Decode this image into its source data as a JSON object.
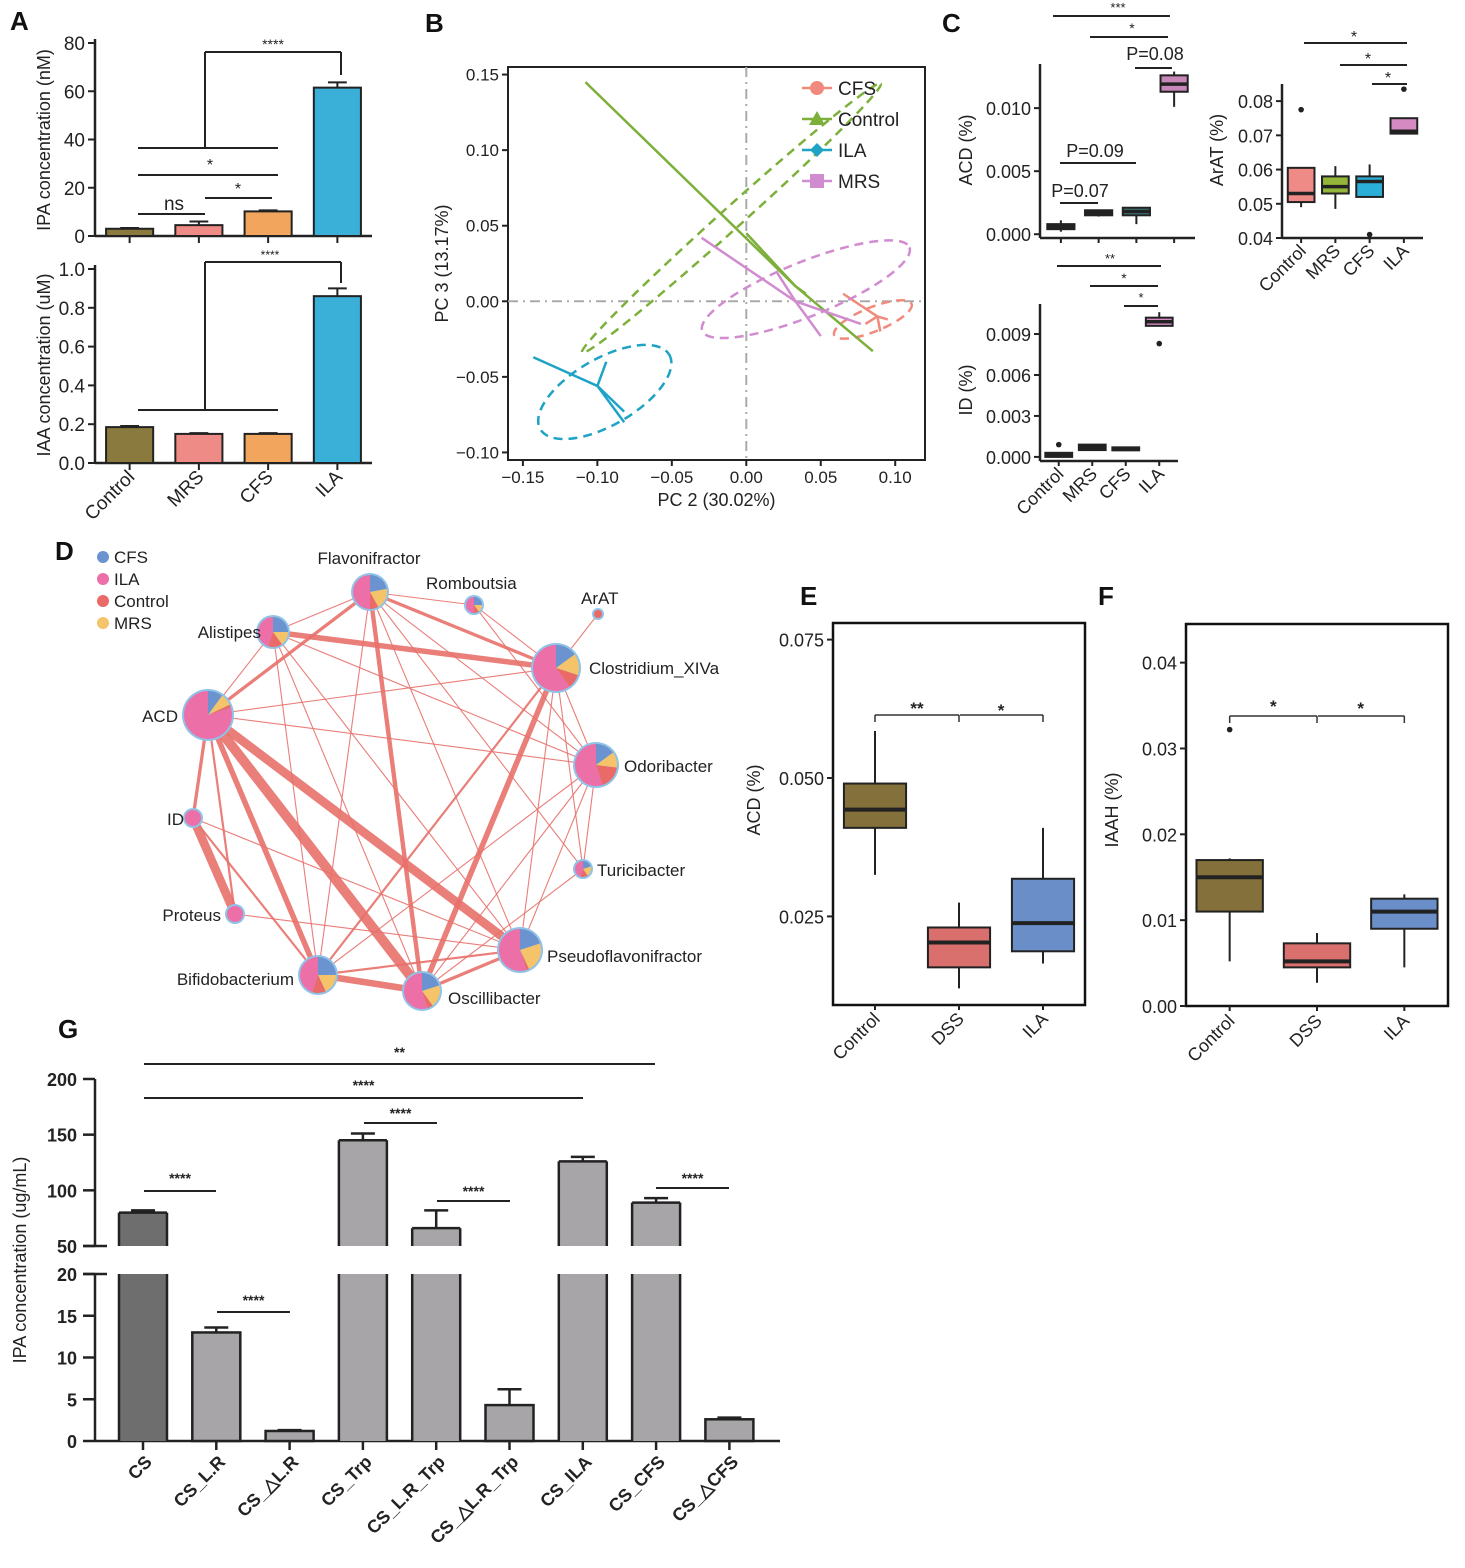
{
  "panels": {
    "A": "A",
    "B": "B",
    "C": "C",
    "D": "D",
    "E": "E",
    "F": "F",
    "G": "G"
  },
  "colors": {
    "control_olive": "#8b7a3e",
    "mrs_pink": "#ef8b86",
    "cfs_orange": "#f2a55c",
    "ila_blue": "#3aafd8",
    "pca_cfs": "#f08a7c",
    "pca_control": "#7db03a",
    "pca_ila": "#1ea3c4",
    "pca_mrs": "#d08ccf",
    "net_cfs": "#6a93cf",
    "net_ila": "#ec6fa8",
    "net_control": "#e96a66",
    "net_mrs": "#f5c36a",
    "edge": "#e8706a",
    "e_control": "#83703a",
    "e_dss": "#d9706e",
    "e_ila": "#6a8fc8",
    "g_cs": "#6e6e6e",
    "g_other": "#a8a5a8"
  },
  "chart_data": [
    {
      "id": "A-top",
      "type": "bar",
      "title": "",
      "xlabel": "",
      "ylabel": "IPA concentration (nM)",
      "categories": [
        "Control",
        "MRS",
        "CFS",
        "ILA"
      ],
      "values": [
        3,
        4.5,
        10.2,
        61.5
      ],
      "errors": [
        0.3,
        1.5,
        0.4,
        2.2
      ],
      "ylim": [
        0,
        80
      ],
      "yticks": [
        0,
        20,
        40,
        60,
        80
      ],
      "annotations": [
        {
          "text": "****",
          "pair": "Control-CFS vs ILA"
        },
        {
          "text": "*",
          "pair": "Control vs CFS"
        },
        {
          "text": "*",
          "pair": "MRS vs CFS"
        },
        {
          "text": "ns",
          "pair": "Control vs MRS"
        }
      ]
    },
    {
      "id": "A-bottom",
      "type": "bar",
      "ylabel": "IAA concentration (uM)",
      "categories": [
        "Control",
        "MRS",
        "CFS",
        "ILA"
      ],
      "values": [
        0.185,
        0.15,
        0.15,
        0.86
      ],
      "errors": [
        0.006,
        0.004,
        0.004,
        0.04
      ],
      "ylim": [
        0,
        1.0
      ],
      "yticks": [
        "0.0",
        "0.2",
        "0.4",
        "0.6",
        "0.8",
        "1.0"
      ],
      "annotations": [
        {
          "text": "****",
          "pair": "Control-CFS vs ILA"
        }
      ]
    },
    {
      "id": "B",
      "type": "scatter",
      "title": "",
      "xlabel": "PC 2 (30.02%)",
      "ylabel": "PC 3 (13.17%)",
      "xlim": [
        -0.16,
        0.12
      ],
      "ylim": [
        -0.105,
        0.155
      ],
      "xticks": [
        "-0.15",
        "-0.10",
        "-0.05",
        "0.00",
        "0.05",
        "0.10"
      ],
      "yticks": [
        "-0.10",
        "-0.05",
        "0.00",
        "0.05",
        "0.10",
        "0.15"
      ],
      "legend": {
        "placement": "top-right",
        "entries": [
          "CFS",
          "Control",
          "ILA",
          "MRS"
        ]
      },
      "series": [
        {
          "name": "CFS",
          "centroid": [
            0.088,
            -0.01
          ],
          "points": [
            [
              0.065,
              0.005
            ],
            [
              0.08,
              -0.015
            ],
            [
              0.095,
              -0.012
            ],
            [
              0.09,
              -0.02
            ]
          ]
        },
        {
          "name": "Control",
          "centroid": [
            0.033,
            0.01
          ],
          "points": [
            [
              -0.108,
              0.145
            ],
            [
              0.0,
              0.045
            ],
            [
              0.085,
              -0.033
            ],
            [
              0.04,
              0.005
            ]
          ]
        },
        {
          "name": "ILA",
          "centroid": [
            -0.1,
            -0.056
          ],
          "points": [
            [
              -0.143,
              -0.037
            ],
            [
              -0.094,
              -0.04
            ],
            [
              -0.082,
              -0.073
            ],
            [
              -0.082,
              -0.08
            ]
          ]
        },
        {
          "name": "MRS",
          "centroid": [
            0.033,
            0.0
          ],
          "points": [
            [
              -0.03,
              0.042
            ],
            [
              0.077,
              -0.015
            ],
            [
              0.05,
              -0.023
            ],
            [
              0.02,
              0.02
            ]
          ]
        }
      ]
    },
    {
      "id": "C-ACD",
      "type": "box",
      "ylabel": "ACD (%)",
      "categories": [
        "Control",
        "MRS",
        "CFS",
        "ILA"
      ],
      "ylim": [
        -0.0003,
        0.0135
      ],
      "yticks": [
        "0.000",
        "0.005",
        "0.010"
      ],
      "boxes": [
        {
          "min": 0.0002,
          "q1": 0.0004,
          "median": 0.0006,
          "q3": 0.0008,
          "max": 0.0011
        },
        {
          "min": 0.0014,
          "q1": 0.0015,
          "median": 0.0017,
          "q3": 0.0019,
          "max": 0.0019
        },
        {
          "min": 0.0008,
          "q1": 0.0015,
          "median": 0.0018,
          "q3": 0.0021,
          "max": 0.0021
        },
        {
          "min": 0.0101,
          "q1": 0.0113,
          "median": 0.0119,
          "q3": 0.0126,
          "max": 0.0129
        }
      ],
      "annotations": [
        "***",
        "*",
        "P=0.08",
        "P=0.09",
        "P=0.07"
      ]
    },
    {
      "id": "C-ArAT",
      "type": "box",
      "ylabel": "ArAT (%)",
      "categories": [
        "Control",
        "MRS",
        "CFS",
        "ILA"
      ],
      "ylim": [
        0.04,
        0.085
      ],
      "yticks": [
        "0.04",
        "0.05",
        "0.06",
        "0.07",
        "0.08"
      ],
      "boxes": [
        {
          "min": 0.049,
          "q1": 0.0505,
          "median": 0.053,
          "q3": 0.0605,
          "max": 0.0605,
          "outliers": [
            0.0775
          ]
        },
        {
          "min": 0.0485,
          "q1": 0.053,
          "median": 0.055,
          "q3": 0.058,
          "max": 0.061
        },
        {
          "min": 0.052,
          "q1": 0.052,
          "median": 0.0565,
          "q3": 0.058,
          "max": 0.0615,
          "outliers": [
            0.041
          ]
        },
        {
          "min": 0.0705,
          "q1": 0.0705,
          "median": 0.0712,
          "q3": 0.075,
          "max": 0.075,
          "outliers": [
            0.0835
          ]
        }
      ],
      "annotations": [
        "*",
        "*",
        "*"
      ]
    },
    {
      "id": "C-ID",
      "type": "box",
      "ylabel": "ID (%)",
      "categories": [
        "Control",
        "MRS",
        "CFS",
        "ILA"
      ],
      "ylim": [
        -0.0003,
        0.0112
      ],
      "yticks": [
        "0.000",
        "0.003",
        "0.006",
        "0.009"
      ],
      "boxes": [
        {
          "min": 0.0,
          "q1": 0.0,
          "median": 0.0001,
          "q3": 0.0003,
          "max": 0.0003,
          "outliers": [
            0.0009
          ]
        },
        {
          "min": 0.0005,
          "q1": 0.0005,
          "median": 0.0007,
          "q3": 0.0009,
          "max": 0.0009
        },
        {
          "min": 0.0005,
          "q1": 0.0005,
          "median": 0.0006,
          "q3": 0.0007,
          "max": 0.0007
        },
        {
          "min": 0.0096,
          "q1": 0.0096,
          "median": 0.0099,
          "q3": 0.0102,
          "max": 0.0106,
          "outliers": [
            0.0083
          ]
        }
      ],
      "annotations": [
        "**",
        "*",
        "*"
      ]
    },
    {
      "id": "D",
      "type": "network",
      "legend": {
        "placement": "top-left",
        "entries": [
          "CFS",
          "ILA",
          "Control",
          "MRS"
        ]
      },
      "nodes": [
        {
          "name": "Flavonifractor",
          "pie": [
            0.22,
            0.5,
            0.08,
            0.2
          ]
        },
        {
          "name": "Romboutsia",
          "pie": [
            0.25,
            0.5,
            0.1,
            0.15
          ]
        },
        {
          "name": "ArAT",
          "pie": [
            0,
            0,
            1,
            0
          ]
        },
        {
          "name": "Alistipes",
          "pie": [
            0.25,
            0.45,
            0.15,
            0.15
          ]
        },
        {
          "name": "Clostridium_XIVa",
          "pie": [
            0.15,
            0.6,
            0.1,
            0.15
          ]
        },
        {
          "name": "ACD",
          "pie": [
            0.1,
            0.8,
            0.02,
            0.08
          ]
        },
        {
          "name": "Odoribacter",
          "pie": [
            0.15,
            0.55,
            0.18,
            0.12
          ]
        },
        {
          "name": "ID",
          "pie": [
            0,
            1,
            0,
            0
          ]
        },
        {
          "name": "Turicibacter",
          "pie": [
            0.2,
            0.45,
            0.15,
            0.2
          ]
        },
        {
          "name": "Proteus",
          "pie": [
            0,
            1,
            0,
            0
          ]
        },
        {
          "name": "Pseudoflavonifractor",
          "pie": [
            0.2,
            0.55,
            0.02,
            0.23
          ]
        },
        {
          "name": "Bifidobacterium",
          "pie": [
            0.25,
            0.45,
            0.12,
            0.18
          ]
        },
        {
          "name": "Oscillibacter",
          "pie": [
            0.2,
            0.55,
            0.05,
            0.2
          ]
        }
      ]
    },
    {
      "id": "E",
      "type": "box",
      "ylabel": "ACD (%)",
      "categories": [
        "Control",
        "DSS",
        "ILA"
      ],
      "ylim": [
        0.009,
        0.078
      ],
      "yticks": [
        "0.025",
        "0.050",
        "0.075"
      ],
      "boxes": [
        {
          "min": 0.0325,
          "q1": 0.041,
          "median": 0.0443,
          "q3": 0.049,
          "max": 0.0585
        },
        {
          "min": 0.012,
          "q1": 0.0158,
          "median": 0.0203,
          "q3": 0.023,
          "max": 0.0275
        },
        {
          "min": 0.0165,
          "q1": 0.0187,
          "median": 0.0238,
          "q3": 0.0318,
          "max": 0.041
        }
      ],
      "annotations": [
        {
          "text": "**",
          "pair": "Control vs DSS"
        },
        {
          "text": "*",
          "pair": "DSS vs ILA"
        }
      ]
    },
    {
      "id": "F",
      "type": "box",
      "ylabel": "IAAH (%)",
      "categories": [
        "Control",
        "DSS",
        "ILA"
      ],
      "ylim": [
        0,
        0.0445
      ],
      "yticks": [
        "0.00",
        "0.01",
        "0.02",
        "0.03",
        "0.04"
      ],
      "boxes": [
        {
          "min": 0.0052,
          "q1": 0.011,
          "median": 0.015,
          "q3": 0.017,
          "max": 0.0172,
          "outliers": [
            0.0322
          ]
        },
        {
          "min": 0.0027,
          "q1": 0.0045,
          "median": 0.0052,
          "q3": 0.0073,
          "max": 0.0085
        },
        {
          "min": 0.0045,
          "q1": 0.009,
          "median": 0.011,
          "q3": 0.0125,
          "max": 0.013
        }
      ],
      "annotations": [
        {
          "text": "*",
          "pair": "Control vs DSS"
        },
        {
          "text": "*",
          "pair": "DSS vs ILA"
        }
      ]
    },
    {
      "id": "G",
      "type": "bar",
      "ylabel": "IPA concentration (ug/mL)",
      "broken_axis": [
        20,
        50
      ],
      "categories": [
        "CS",
        "CS_L.R",
        "CS_△L.R",
        "CS_Trp",
        "CS_L.R_Trp",
        "CS_△L.R_Trp",
        "CS_ILA",
        "CS_CFS",
        "CS_△CFS"
      ],
      "values": [
        80,
        13,
        1.2,
        145,
        66,
        4.3,
        126,
        89,
        2.6
      ],
      "errors": [
        2,
        0.6,
        0.1,
        6,
        16,
        1.9,
        4,
        4,
        0.2
      ],
      "ylim_low": [
        0,
        20
      ],
      "ylim_high": [
        50,
        200
      ],
      "yticks_low": [
        "0",
        "5",
        "10",
        "15",
        "20"
      ],
      "yticks_high": [
        "50",
        "100",
        "150",
        "200"
      ],
      "annotations": [
        {
          "text": "**",
          "pair": "CS vs CS_CFS"
        },
        {
          "text": "****",
          "pair": "CS vs CS_ILA"
        },
        {
          "text": "****",
          "pair": "CS_Trp vs CS_L.R_Trp"
        },
        {
          "text": "****",
          "pair": "CS vs CS_L.R"
        },
        {
          "text": "****",
          "pair": "CS_L.R vs CS_△L.R"
        },
        {
          "text": "****",
          "pair": "CS_L.R_Trp vs CS_△L.R_Trp"
        },
        {
          "text": "****",
          "pair": "CS_CFS vs CS_△CFS"
        }
      ]
    }
  ]
}
